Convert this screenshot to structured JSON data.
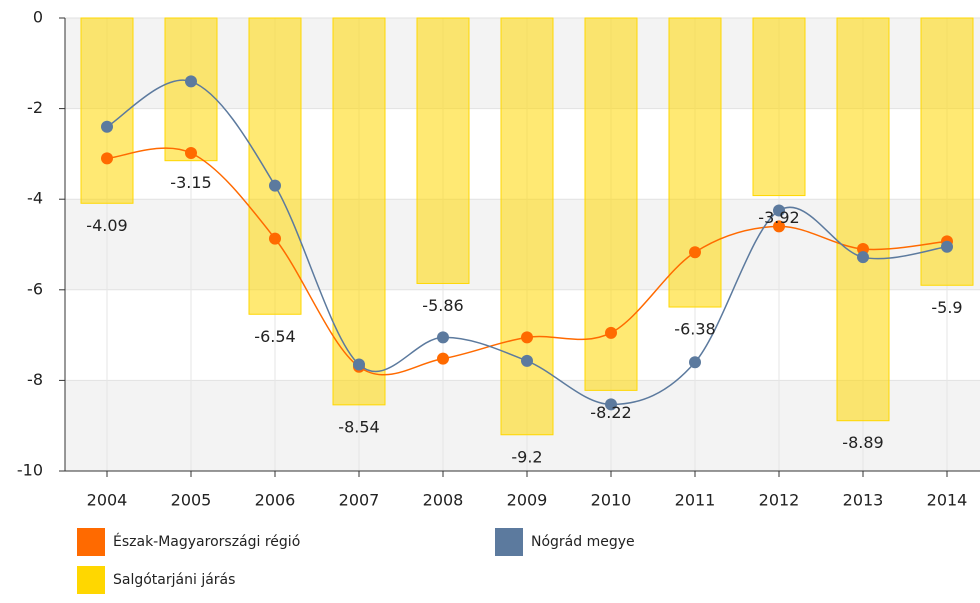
{
  "chart_data": {
    "type": "bar-line",
    "categories": [
      "2004",
      "2005",
      "2006",
      "2007",
      "2008",
      "2009",
      "2010",
      "2011",
      "2012",
      "2013",
      "2014"
    ],
    "ylim": [
      -10,
      0
    ],
    "yticks": [
      0,
      -2,
      -4,
      -6,
      -8,
      -10
    ],
    "grid": true,
    "series": [
      {
        "name": "Észak-Magyarországi régió",
        "type": "line",
        "color": "#ff6a00",
        "values": [
          -3.1,
          -2.98,
          -4.87,
          -7.7,
          -7.52,
          -7.05,
          -6.95,
          -5.17,
          -4.6,
          -5.1,
          -4.93
        ]
      },
      {
        "name": "Nógrád megye",
        "type": "line",
        "color": "#5c7a9e",
        "values": [
          -2.4,
          -1.4,
          -3.7,
          -7.65,
          -7.05,
          -7.57,
          -8.53,
          -7.6,
          -4.25,
          -5.28,
          -5.05
        ]
      },
      {
        "name": "Salgótarjáni járás",
        "type": "bar",
        "color": "#ffd700",
        "values": [
          -4.09,
          -3.15,
          -6.54,
          -8.54,
          -5.86,
          -9.2,
          -8.22,
          -6.38,
          -3.92,
          -8.89,
          -5.9
        ]
      }
    ]
  }
}
